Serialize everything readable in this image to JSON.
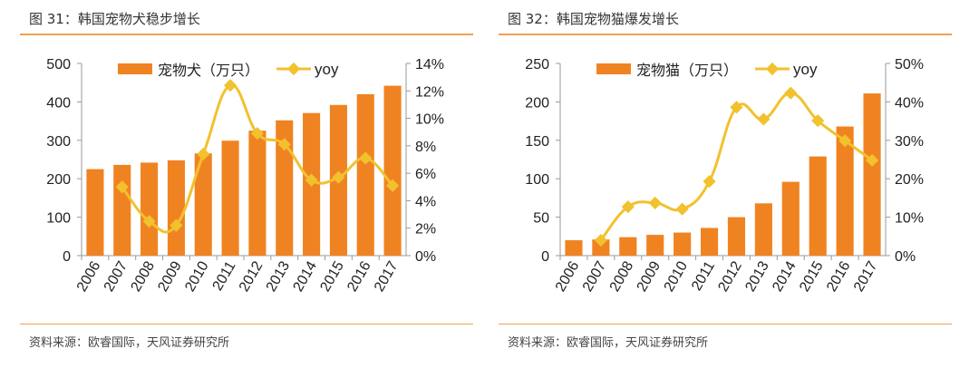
{
  "colors": {
    "bar": "#f08321",
    "line": "#f2c12e",
    "rule": "#f0a050"
  },
  "chart_data": [
    {
      "type": "bar+line",
      "title": "图 31：韩国宠物犬稳步增长",
      "source": "资料来源：欧睿国际，天风证券研究所",
      "categories": [
        "2006",
        "2007",
        "2008",
        "2009",
        "2010",
        "2011",
        "2012",
        "2013",
        "2014",
        "2015",
        "2016",
        "2017"
      ],
      "series": [
        {
          "name": "宠物犬（万只）",
          "type": "bar",
          "axis": "left",
          "values": [
            225,
            236,
            242,
            248,
            266,
            299,
            325,
            352,
            371,
            392,
            420,
            442
          ]
        },
        {
          "name": "yoy",
          "type": "line",
          "axis": "right",
          "values": [
            null,
            5.0,
            2.5,
            2.2,
            7.4,
            12.4,
            8.9,
            8.1,
            5.5,
            5.7,
            7.1,
            5.1
          ]
        }
      ],
      "ylim_left": [
        0,
        500
      ],
      "yticks_left": [
        "0",
        "100",
        "200",
        "300",
        "400",
        "500"
      ],
      "ylim_right": [
        0,
        14
      ],
      "yticks_right": [
        "0%",
        "2%",
        "4%",
        "6%",
        "8%",
        "10%",
        "12%",
        "14%"
      ],
      "legend": "top"
    },
    {
      "type": "bar+line",
      "title": "图 32：韩国宠物猫爆发增长",
      "source": "资料来源：欧睿国际，天风证券研究所",
      "categories": [
        "2006",
        "2007",
        "2008",
        "2009",
        "2010",
        "2011",
        "2012",
        "2013",
        "2014",
        "2015",
        "2016",
        "2017"
      ],
      "series": [
        {
          "name": "宠物猫（万只）",
          "type": "bar",
          "axis": "left",
          "values": [
            20,
            21,
            24,
            27,
            30,
            36,
            50,
            68,
            96,
            129,
            168,
            211
          ]
        },
        {
          "name": "yoy",
          "type": "line",
          "axis": "right",
          "values": [
            null,
            4.0,
            12.7,
            13.7,
            12.1,
            19.3,
            38.6,
            35.5,
            42.3,
            35.1,
            29.9,
            24.8
          ]
        }
      ],
      "ylim_left": [
        0,
        250
      ],
      "yticks_left": [
        "0",
        "50",
        "100",
        "150",
        "200",
        "250"
      ],
      "ylim_right": [
        0,
        50
      ],
      "yticks_right": [
        "0%",
        "10%",
        "20%",
        "30%",
        "40%",
        "50%"
      ],
      "legend": "top"
    }
  ]
}
